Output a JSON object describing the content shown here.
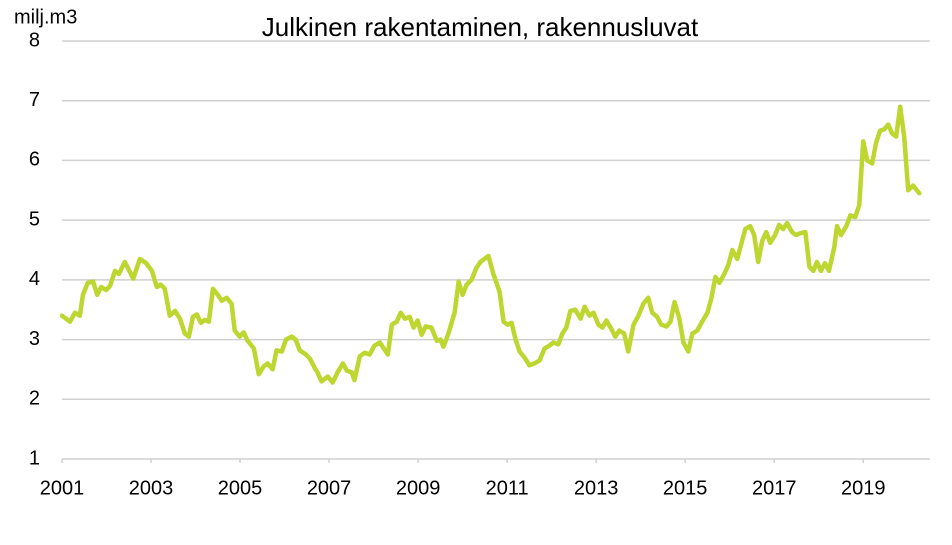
{
  "chart_data": {
    "type": "line",
    "title": "Julkinen rakentaminen, rakennusluvat",
    "y_label": "milj.m3",
    "x": [
      2001.0,
      2001.18,
      2001.29,
      2001.4,
      2001.47,
      2001.58,
      2001.7,
      2001.79,
      2001.88,
      2001.99,
      2002.08,
      2002.19,
      2002.28,
      2002.41,
      2002.48,
      2002.6,
      2002.75,
      2002.89,
      2003.02,
      2003.13,
      2003.22,
      2003.31,
      2003.42,
      2003.54,
      2003.65,
      2003.76,
      2003.85,
      2003.94,
      2004.03,
      2004.12,
      2004.21,
      2004.3,
      2004.39,
      2004.5,
      2004.59,
      2004.7,
      2004.81,
      2004.88,
      2004.99,
      2005.08,
      2005.17,
      2005.31,
      2005.42,
      2005.53,
      2005.62,
      2005.73,
      2005.82,
      2005.94,
      2006.03,
      2006.16,
      2006.25,
      2006.34,
      2006.48,
      2006.57,
      2006.68,
      2006.74,
      2006.83,
      2006.97,
      2007.08,
      2007.19,
      2007.31,
      2007.4,
      2007.51,
      2007.57,
      2007.69,
      2007.8,
      2007.91,
      2008.02,
      2008.14,
      2008.23,
      2008.32,
      2008.41,
      2008.52,
      2008.61,
      2008.7,
      2008.81,
      2008.9,
      2008.99,
      2009.08,
      2009.17,
      2009.3,
      2009.42,
      2009.5,
      2009.57,
      2009.68,
      2009.82,
      2009.91,
      2010.0,
      2010.09,
      2010.2,
      2010.31,
      2010.4,
      2010.49,
      2010.58,
      2010.69,
      2010.83,
      2010.92,
      2011.01,
      2011.1,
      2011.19,
      2011.28,
      2011.39,
      2011.5,
      2011.61,
      2011.73,
      2011.84,
      2011.95,
      2012.04,
      2012.15,
      2012.24,
      2012.33,
      2012.42,
      2012.53,
      2012.65,
      2012.74,
      2012.85,
      2012.94,
      2013.05,
      2013.14,
      2013.23,
      2013.34,
      2013.43,
      2013.52,
      2013.63,
      2013.72,
      2013.84,
      2013.95,
      2014.06,
      2014.17,
      2014.26,
      2014.37,
      2014.46,
      2014.58,
      2014.67,
      2014.76,
      2014.87,
      2014.96,
      2015.07,
      2015.16,
      2015.27,
      2015.38,
      2015.5,
      2015.59,
      2015.68,
      2015.77,
      2015.88,
      2015.97,
      2016.06,
      2016.17,
      2016.26,
      2016.35,
      2016.46,
      2016.55,
      2016.64,
      2016.73,
      2016.82,
      2016.91,
      2017.02,
      2017.11,
      2017.2,
      2017.29,
      2017.4,
      2017.49,
      2017.58,
      2017.7,
      2017.79,
      2017.88,
      2017.96,
      2018.05,
      2018.14,
      2018.23,
      2018.35,
      2018.41,
      2018.5,
      2018.62,
      2018.71,
      2018.82,
      2018.91,
      2019.0,
      2019.09,
      2019.2,
      2019.29,
      2019.38,
      2019.47,
      2019.56,
      2019.65,
      2019.74,
      2019.83,
      2019.92,
      2020.01,
      2020.12,
      2020.26
    ],
    "series": [
      {
        "name": "Julkinen rakentaminen",
        "color": "#bdd630",
        "values": [
          3.4,
          3.3,
          3.45,
          3.4,
          3.75,
          3.95,
          3.97,
          3.75,
          3.88,
          3.83,
          3.9,
          4.15,
          4.1,
          4.3,
          4.2,
          4.02,
          4.35,
          4.28,
          4.15,
          3.88,
          3.92,
          3.85,
          3.4,
          3.48,
          3.35,
          3.1,
          3.05,
          3.38,
          3.42,
          3.28,
          3.33,
          3.3,
          3.85,
          3.75,
          3.65,
          3.7,
          3.6,
          3.15,
          3.05,
          3.12,
          2.98,
          2.85,
          2.42,
          2.55,
          2.6,
          2.5,
          2.82,
          2.8,
          3.0,
          3.05,
          3.0,
          2.82,
          2.75,
          2.68,
          2.52,
          2.45,
          2.3,
          2.38,
          2.28,
          2.45,
          2.6,
          2.48,
          2.45,
          2.32,
          2.72,
          2.78,
          2.75,
          2.9,
          2.95,
          2.85,
          2.75,
          3.25,
          3.3,
          3.45,
          3.35,
          3.38,
          3.2,
          3.32,
          3.08,
          3.22,
          3.2,
          2.98,
          3.0,
          2.88,
          3.1,
          3.45,
          3.97,
          3.75,
          3.92,
          4.0,
          4.2,
          4.3,
          4.35,
          4.4,
          4.1,
          3.8,
          3.3,
          3.25,
          3.28,
          3.0,
          2.8,
          2.7,
          2.57,
          2.6,
          2.65,
          2.85,
          2.9,
          2.95,
          2.92,
          3.1,
          3.2,
          3.48,
          3.5,
          3.35,
          3.55,
          3.4,
          3.45,
          3.25,
          3.2,
          3.32,
          3.18,
          3.05,
          3.15,
          3.1,
          2.8,
          3.25,
          3.4,
          3.6,
          3.7,
          3.45,
          3.38,
          3.25,
          3.22,
          3.3,
          3.63,
          3.35,
          2.95,
          2.8,
          3.1,
          3.15,
          3.3,
          3.45,
          3.7,
          4.05,
          3.95,
          4.1,
          4.25,
          4.5,
          4.35,
          4.6,
          4.85,
          4.9,
          4.75,
          4.3,
          4.65,
          4.8,
          4.62,
          4.75,
          4.92,
          4.85,
          4.95,
          4.8,
          4.75,
          4.78,
          4.8,
          4.22,
          4.15,
          4.3,
          4.15,
          4.28,
          4.15,
          4.55,
          4.9,
          4.75,
          4.9,
          5.08,
          5.05,
          5.25,
          6.32,
          6.0,
          5.95,
          6.3,
          6.5,
          6.52,
          6.6,
          6.45,
          6.4,
          6.9,
          6.4,
          5.5,
          5.58,
          5.45
        ]
      }
    ],
    "xlim": [
      2001,
      2020.5
    ],
    "xticks": [
      2001,
      2003,
      2005,
      2007,
      2009,
      2011,
      2013,
      2015,
      2017,
      2019
    ],
    "ylim": [
      1,
      8
    ],
    "yticks": [
      1,
      2,
      3,
      4,
      5,
      6,
      7,
      8
    ],
    "grid": true
  }
}
